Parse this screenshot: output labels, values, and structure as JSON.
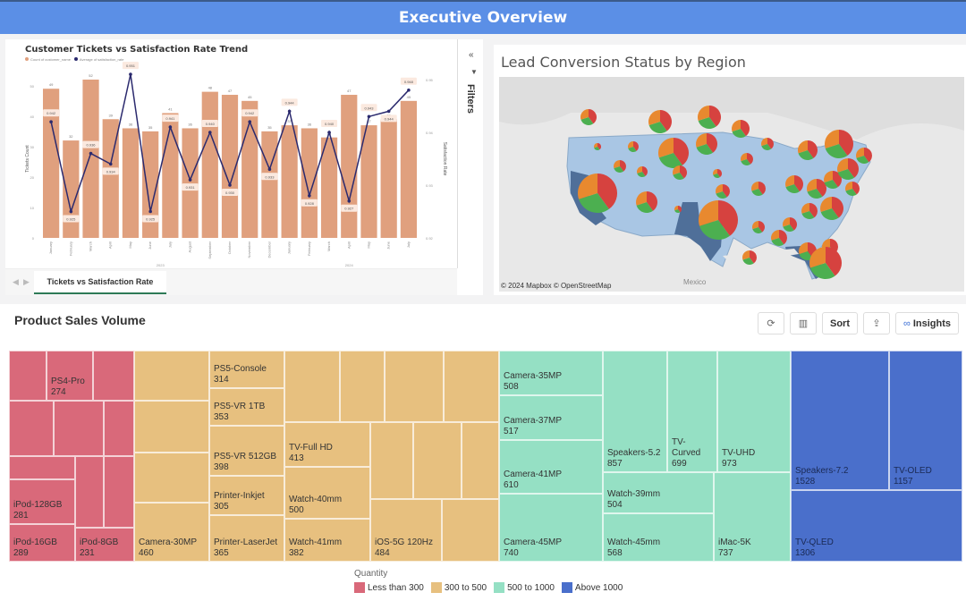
{
  "header": {
    "title": "Executive Overview"
  },
  "ticket_chart": {
    "title": "Customer Tickets vs Satisfaction Rate Trend",
    "legend": [
      {
        "label": "Count of customer_name",
        "color": "#e0a07e"
      },
      {
        "label": "Average of satisfaction_rate",
        "color": "#2b2a6e"
      }
    ],
    "tab_label": "Tickets vs Satisfaction Rate",
    "filters_label": "Filters"
  },
  "chart_data": {
    "type": "bar",
    "title": "Customer Tickets vs Satisfaction Rate Trend",
    "xlabel": "",
    "ylabel": "Tickets Count",
    "y2label": "Satisfaction Rate",
    "ylim": [
      0,
      52
    ],
    "y2lim": [
      0.92,
      0.95
    ],
    "yticks": [
      0,
      10,
      20,
      30,
      40,
      50
    ],
    "y2ticks": [
      0.92,
      0.93,
      0.94,
      0.95
    ],
    "year_groups": [
      {
        "label": "2023",
        "count": 12
      },
      {
        "label": "2024",
        "count": 7
      }
    ],
    "categories": [
      "January",
      "February",
      "March",
      "April",
      "May",
      "June",
      "July",
      "August",
      "September",
      "October",
      "November",
      "December",
      "January",
      "February",
      "March",
      "April",
      "May",
      "June",
      "July"
    ],
    "series": [
      {
        "name": "Count of customer_name",
        "type": "bar",
        "color": "#e0a07e",
        "values": [
          49,
          32,
          52,
          39,
          36,
          35,
          41,
          36,
          48,
          47,
          45,
          35,
          37,
          36,
          33,
          47,
          37,
          39,
          45
        ]
      },
      {
        "name": "Average of satisfaction_rate",
        "type": "line",
        "color": "#2b2a6e",
        "values": [
          0.942,
          0.925,
          0.936,
          0.934,
          0.951,
          0.925,
          0.941,
          0.931,
          0.94,
          0.93,
          0.942,
          0.933,
          0.944,
          0.928,
          0.94,
          0.927,
          0.943,
          0.944,
          0.948
        ]
      }
    ]
  },
  "map": {
    "title": "Lead Conversion Status by Region",
    "credit": "© 2024 Mapbox  © OpenStreetMap",
    "place_label": "Mexico",
    "pie_colors": [
      "#d6423f",
      "#e8892f",
      "#4caf50"
    ]
  },
  "product_sales": {
    "title": "Product Sales Volume",
    "toolbar": {
      "sort_label": "Sort",
      "insights_label": "Insights"
    },
    "legend_title": "Quantity",
    "legend": [
      {
        "label": "Less than 300",
        "color": "#d9697a"
      },
      {
        "label": "300 to 500",
        "color": "#e7c07f"
      },
      {
        "label": "500 to 1000",
        "color": "#95e0c4"
      },
      {
        "label": "Above 1000",
        "color": "#4a6fcb"
      }
    ],
    "cells": [
      {
        "name": "",
        "value": "",
        "group": 0
      },
      {
        "name": "PS4-Pro",
        "value": "274",
        "group": 0
      },
      {
        "name": "",
        "value": "",
        "group": 0
      },
      {
        "name": "",
        "value": "",
        "group": 0
      },
      {
        "name": "",
        "value": "",
        "group": 0
      },
      {
        "name": "",
        "value": "",
        "group": 0
      },
      {
        "name": "",
        "value": "",
        "group": 0
      },
      {
        "name": "",
        "value": "",
        "group": 0
      },
      {
        "name": "",
        "value": "",
        "group": 0
      },
      {
        "name": "iPod-128GB",
        "value": "281",
        "group": 0
      },
      {
        "name": "iPod-16GB",
        "value": "289",
        "group": 0
      },
      {
        "name": "iPod-8GB",
        "value": "231",
        "group": 0
      },
      {
        "name": "",
        "value": "",
        "group": 1
      },
      {
        "name": "",
        "value": "",
        "group": 1
      },
      {
        "name": "",
        "value": "",
        "group": 1
      },
      {
        "name": "Camera-30MP",
        "value": "460",
        "group": 1
      },
      {
        "name": "PS5-Console",
        "value": "314",
        "group": 1
      },
      {
        "name": "PS5-VR 1TB",
        "value": "353",
        "group": 1
      },
      {
        "name": "PS5-VR 512GB",
        "value": "398",
        "group": 1
      },
      {
        "name": "Printer-Inkjet",
        "value": "305",
        "group": 1
      },
      {
        "name": "Printer-LaserJet",
        "value": "365",
        "group": 1
      },
      {
        "name": "",
        "value": "",
        "group": 1
      },
      {
        "name": "",
        "value": "",
        "group": 1
      },
      {
        "name": "",
        "value": "",
        "group": 1
      },
      {
        "name": "",
        "value": "",
        "group": 1
      },
      {
        "name": "TV-Full HD",
        "value": "413",
        "group": 1
      },
      {
        "name": "Watch-40mm",
        "value": "500",
        "group": 1
      },
      {
        "name": "Watch-41mm",
        "value": "382",
        "group": 1
      },
      {
        "name": "",
        "value": "",
        "group": 1
      },
      {
        "name": "",
        "value": "",
        "group": 1
      },
      {
        "name": "",
        "value": "",
        "group": 1
      },
      {
        "name": "iOS-5G 120Hz",
        "value": "484",
        "group": 1
      },
      {
        "name": "",
        "value": "",
        "group": 1
      },
      {
        "name": "Camera-35MP",
        "value": "508",
        "group": 2
      },
      {
        "name": "Camera-37MP",
        "value": "517",
        "group": 2
      },
      {
        "name": "Camera-41MP",
        "value": "610",
        "group": 2
      },
      {
        "name": "Camera-45MP",
        "value": "740",
        "group": 2
      },
      {
        "name": "Speakers-5.2",
        "value": "857",
        "group": 2
      },
      {
        "name": "TV-Curved",
        "value": "699",
        "group": 2
      },
      {
        "name": "TV-UHD",
        "value": "973",
        "group": 2
      },
      {
        "name": "Watch-39mm",
        "value": "504",
        "group": 2
      },
      {
        "name": "Watch-45mm",
        "value": "568",
        "group": 2
      },
      {
        "name": "iMac-5K",
        "value": "737",
        "group": 2
      },
      {
        "name": "Speakers-7.2",
        "value": "1528",
        "group": 3
      },
      {
        "name": "TV-OLED",
        "value": "1157",
        "group": 3
      },
      {
        "name": "TV-QLED",
        "value": "1306",
        "group": 3
      }
    ]
  }
}
